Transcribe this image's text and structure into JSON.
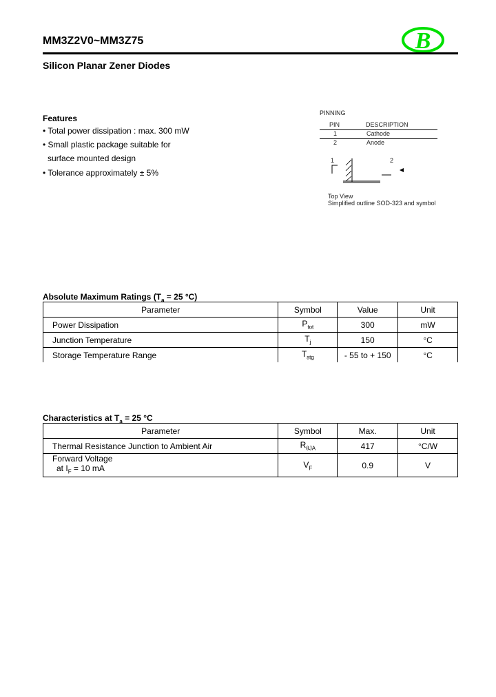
{
  "header": {
    "title": "MM3Z2V0~MM3Z75",
    "subtitle": "Silicon Planar Zener Diodes",
    "logo_letter": "B",
    "logo_color": "#00e000"
  },
  "features": {
    "heading": "Features",
    "items": [
      "• Total power dissipation : max. 300 mW",
      "• Small plastic package suitable for",
      "surface mounted design",
      "• Tolerance approximately ± 5%"
    ]
  },
  "pinning": {
    "heading": "PINNING",
    "col_pin": "PIN",
    "col_desc": "DESCRIPTION",
    "rows": [
      {
        "pin": "1",
        "desc": "Cathode"
      },
      {
        "pin": "2",
        "desc": "Anode"
      }
    ],
    "label_1": "1",
    "label_2": "2",
    "caption_1": "Top View",
    "caption_2": "Simplified outline SOD-323 and symbol"
  },
  "abs_max": {
    "title": "Absolute Maximum Ratings (T",
    "title_sub": "a",
    "title_end": " = 25 °C)",
    "headers": [
      "Parameter",
      "Symbol",
      "Value",
      "Unit"
    ],
    "rows": [
      {
        "param": "Power Dissipation",
        "sym": "P",
        "sym_sub": "tot",
        "value": "300",
        "unit": "mW"
      },
      {
        "param": "Junction Temperature",
        "sym": "T",
        "sym_sub": "j",
        "value": "150",
        "unit": "°C"
      },
      {
        "param": "Storage Temperature Range",
        "sym": "T",
        "sym_sub": "stg",
        "value": "- 55 to + 150",
        "unit": "°C"
      }
    ]
  },
  "chars": {
    "title": "Characteristics at T",
    "title_sub": "a",
    "title_end": " = 25 °C",
    "headers": [
      "Parameter",
      "Symbol",
      "Max.",
      "Unit"
    ],
    "rows": [
      {
        "param": "Thermal Resistance Junction to Ambient Air",
        "sym": "R",
        "sym_sub": "θJA",
        "value": "417",
        "unit": "°C/W"
      },
      {
        "param": "Forward Voltage",
        "param2": "at I",
        "param2_sub": "F",
        "param2_end": " = 10 mA",
        "sym": "V",
        "sym_sub": "F",
        "value": "0.9",
        "unit": "V"
      }
    ]
  }
}
